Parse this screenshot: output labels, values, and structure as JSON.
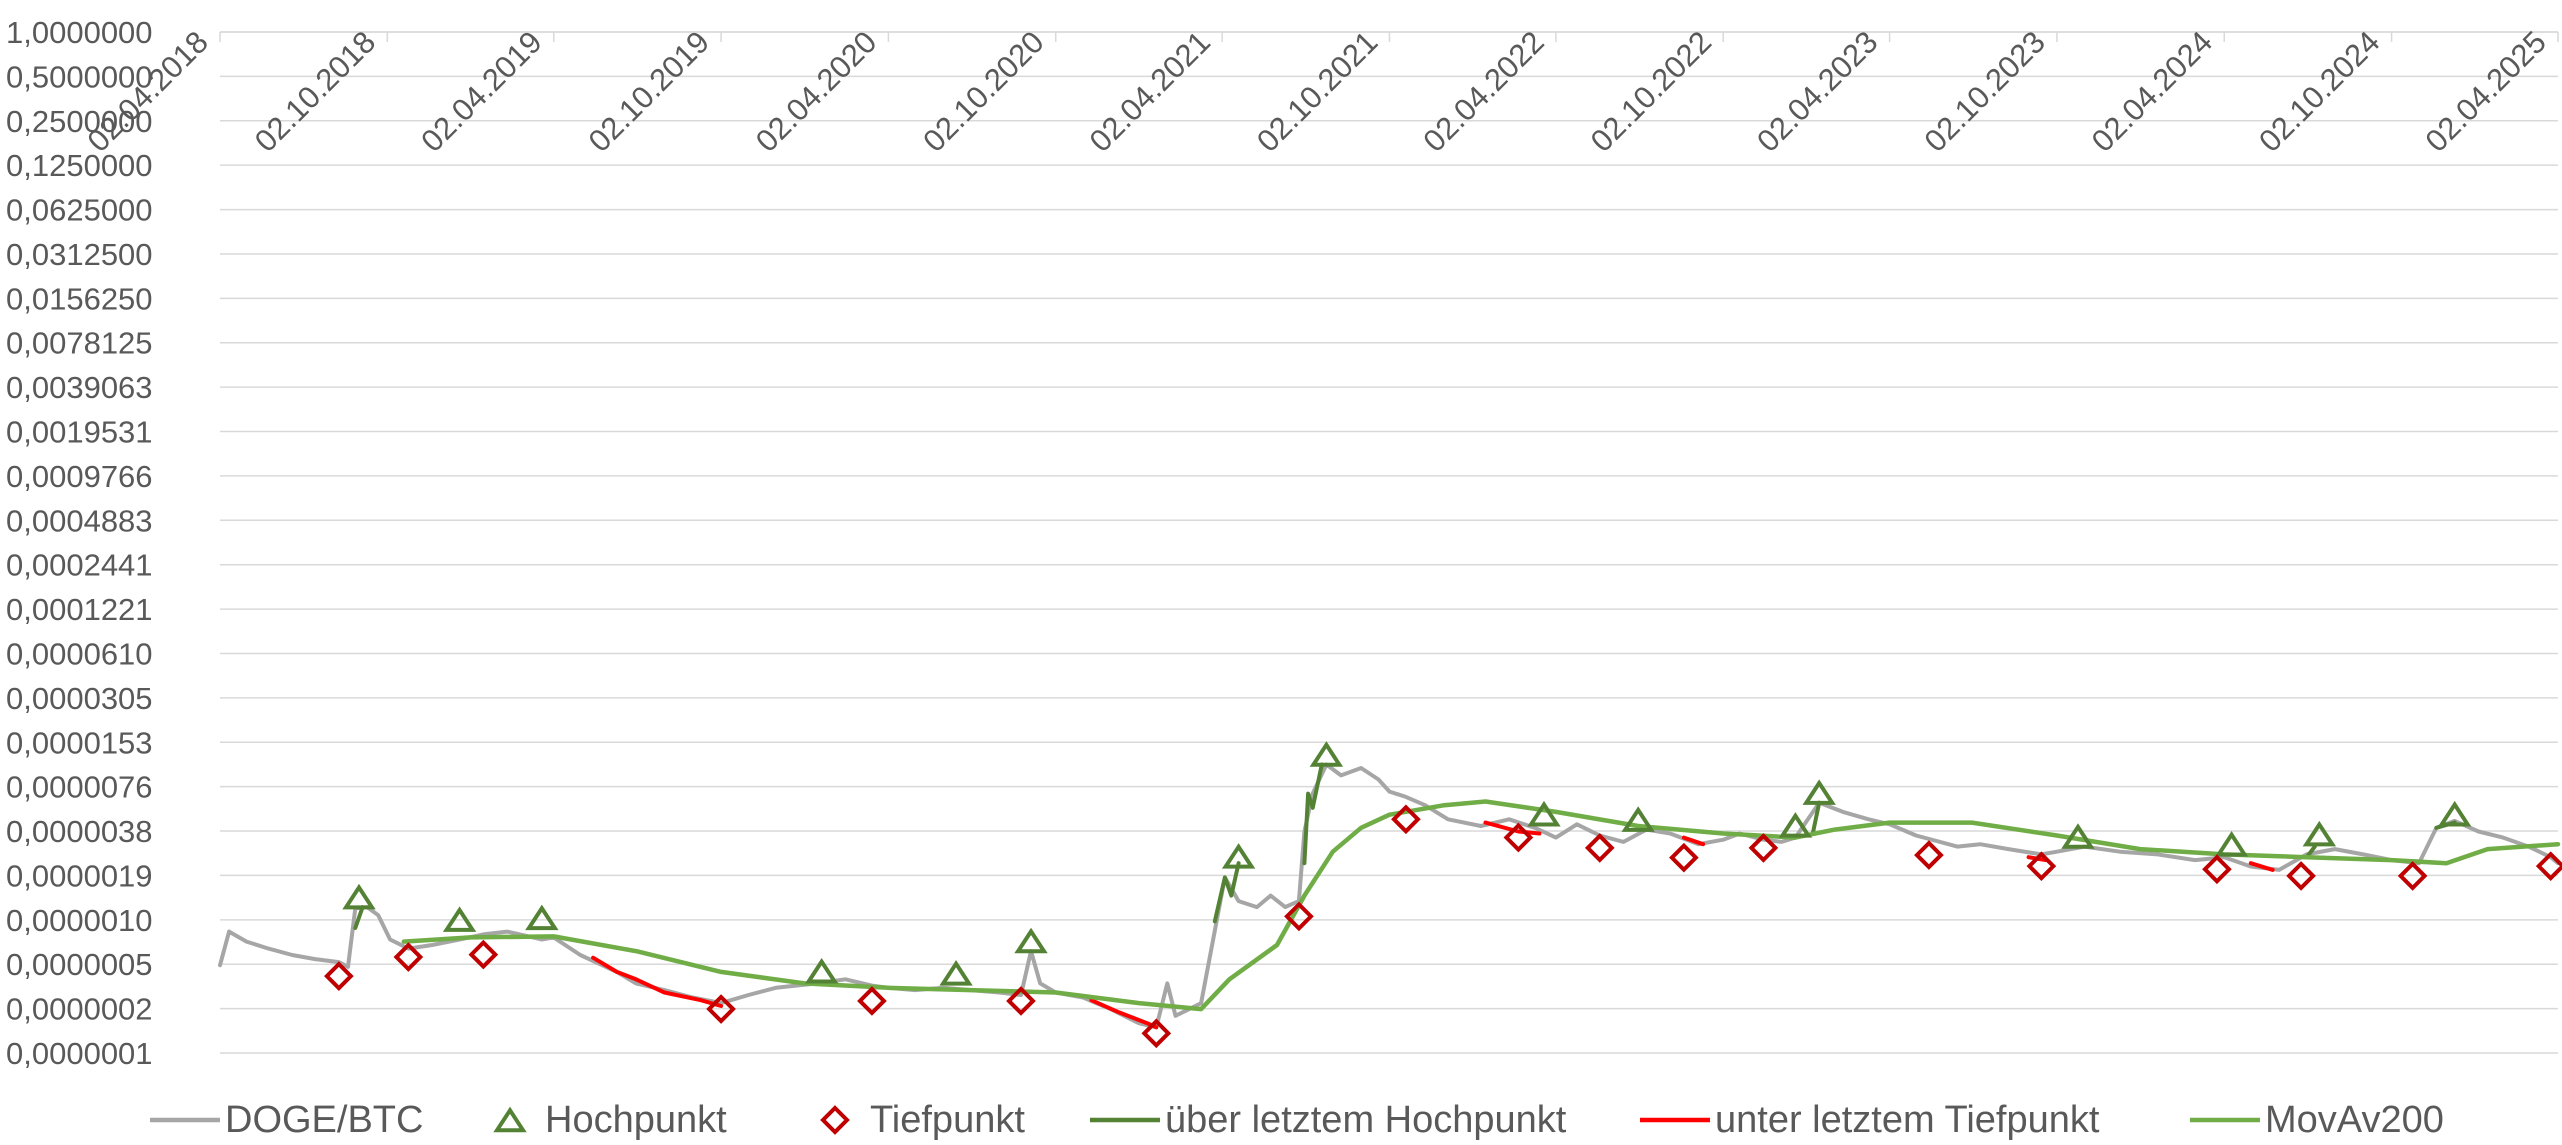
{
  "chart_data": {
    "type": "line",
    "title": "",
    "xlabel": "",
    "ylabel": "",
    "x_axis": {
      "type": "date",
      "range": [
        "2018-04-02",
        "2025-04-02"
      ],
      "ticks": [
        "02.04.2018",
        "02.10.2018",
        "02.04.2019",
        "02.10.2019",
        "02.04.2020",
        "02.10.2020",
        "02.04.2021",
        "02.10.2021",
        "02.04.2022",
        "02.10.2022",
        "02.04.2023",
        "02.10.2023",
        "02.04.2024",
        "02.10.2024",
        "02.04.2025"
      ]
    },
    "y_axis": {
      "scale": "log2",
      "range": [
        1e-07,
        1.0
      ],
      "ticks": [
        "0,0000001",
        "0,0000002",
        "0,0000005",
        "0,0000010",
        "0,0000019",
        "0,0000038",
        "0,0000076",
        "0,0000153",
        "0,0000305",
        "0,0000610",
        "0,0001221",
        "0,0002441",
        "0,0004883",
        "0,0009766",
        "0,0019531",
        "0,0039063",
        "0,0078125",
        "0,0156250",
        "0,0312500",
        "0,0625000",
        "0,1250000",
        "0,2500000",
        "0,5000000",
        "1,0000000"
      ]
    },
    "grid": true,
    "legend_position": "bottom",
    "colors": {
      "price": "#A6A6A6",
      "high_marker": "#548235",
      "low_marker": "#C00000",
      "above_high": "#548235",
      "below_low": "#FF0000",
      "movav": "#70AD47",
      "grid": "#D9D9D9"
    },
    "legend": [
      {
        "key": "price",
        "label": "DOGE/BTC",
        "kind": "line"
      },
      {
        "key": "high",
        "label": "Hochpunkt",
        "kind": "triangle"
      },
      {
        "key": "low",
        "label": "Tiefpunkt",
        "kind": "diamond"
      },
      {
        "key": "above_high",
        "label": "über letztem Hochpunkt",
        "kind": "line"
      },
      {
        "key": "below_low",
        "label": "unter letztem Tiefpunkt",
        "kind": "line"
      },
      {
        "key": "movav",
        "label": "MovAv200",
        "kind": "line"
      }
    ],
    "series": [
      {
        "name": "DOGE/BTC",
        "points": [
          [
            "2018-04-02",
            4e-07
          ],
          [
            "2018-04-12",
            6.8e-07
          ],
          [
            "2018-05-01",
            5.8e-07
          ],
          [
            "2018-05-25",
            5.2e-07
          ],
          [
            "2018-06-20",
            4.7e-07
          ],
          [
            "2018-07-15",
            4.4e-07
          ],
          [
            "2018-08-10",
            4.2e-07
          ],
          [
            "2018-08-20",
            3.9e-07
          ],
          [
            "2018-08-28",
            9.8e-07
          ],
          [
            "2018-09-10",
            1e-06
          ],
          [
            "2018-09-22",
            8.8e-07
          ],
          [
            "2018-10-05",
            6e-07
          ],
          [
            "2018-10-25",
            5.2e-07
          ],
          [
            "2018-11-20",
            5.5e-07
          ],
          [
            "2018-12-20",
            6e-07
          ],
          [
            "2019-01-15",
            6.5e-07
          ],
          [
            "2019-02-10",
            6.8e-07
          ],
          [
            "2019-03-01",
            6.4e-07
          ],
          [
            "2019-03-20",
            6e-07
          ],
          [
            "2019-04-02",
            6.2e-07
          ],
          [
            "2019-05-01",
            4.7e-07
          ],
          [
            "2019-06-10",
            3.6e-07
          ],
          [
            "2019-07-01",
            3e-07
          ],
          [
            "2019-08-01",
            2.7e-07
          ],
          [
            "2019-09-01",
            2.4e-07
          ],
          [
            "2019-10-02",
            2.2e-07
          ],
          [
            "2019-11-01",
            2.5e-07
          ],
          [
            "2019-12-01",
            2.8e-07
          ],
          [
            "2020-01-15",
            3e-07
          ],
          [
            "2020-02-15",
            3.2e-07
          ],
          [
            "2020-03-15",
            2.9e-07
          ],
          [
            "2020-04-02",
            2.8e-07
          ],
          [
            "2020-05-01",
            2.7e-07
          ],
          [
            "2020-06-01",
            2.8e-07
          ],
          [
            "2020-07-01",
            2.7e-07
          ],
          [
            "2020-08-01",
            2.6e-07
          ],
          [
            "2020-08-25",
            2.5e-07
          ],
          [
            "2020-09-05",
            5e-07
          ],
          [
            "2020-09-15",
            3e-07
          ],
          [
            "2020-10-02",
            2.6e-07
          ],
          [
            "2020-11-01",
            2.4e-07
          ],
          [
            "2020-12-01",
            2e-07
          ],
          [
            "2021-01-01",
            1.6e-07
          ],
          [
            "2021-01-20",
            1.5e-07
          ],
          [
            "2021-02-01",
            3e-07
          ],
          [
            "2021-02-10",
            1.8e-07
          ],
          [
            "2021-02-25",
            2e-07
          ],
          [
            "2021-03-10",
            2.2e-07
          ],
          [
            "2021-04-05",
            1.6e-06
          ],
          [
            "2021-04-20",
            1.1e-06
          ],
          [
            "2021-05-10",
            1e-06
          ],
          [
            "2021-05-25",
            1.2e-06
          ],
          [
            "2021-06-10",
            1e-06
          ],
          [
            "2021-06-25",
            1.1e-06
          ],
          [
            "2021-07-01",
            3.3e-06
          ],
          [
            "2021-07-10",
            6e-06
          ],
          [
            "2021-07-25",
            9.5e-06
          ],
          [
            "2021-08-10",
            8e-06
          ],
          [
            "2021-09-01",
            9e-06
          ],
          [
            "2021-09-20",
            7.5e-06
          ],
          [
            "2021-10-02",
            6.2e-06
          ],
          [
            "2021-10-20",
            5.7e-06
          ],
          [
            "2021-11-10",
            5e-06
          ],
          [
            "2021-12-05",
            4e-06
          ],
          [
            "2022-01-10",
            3.6e-06
          ],
          [
            "2022-02-10",
            4e-06
          ],
          [
            "2022-03-10",
            3.5e-06
          ],
          [
            "2022-04-02",
            3e-06
          ],
          [
            "2022-04-25",
            3.7e-06
          ],
          [
            "2022-05-20",
            3.1e-06
          ],
          [
            "2022-06-15",
            2.8e-06
          ],
          [
            "2022-07-10",
            3.4e-06
          ],
          [
            "2022-08-05",
            3.2e-06
          ],
          [
            "2022-09-05",
            2.7e-06
          ],
          [
            "2022-10-02",
            2.9e-06
          ],
          [
            "2022-10-20",
            3.2e-06
          ],
          [
            "2022-11-15",
            2.9e-06
          ],
          [
            "2022-12-05",
            2.8e-06
          ],
          [
            "2022-12-20",
            3e-06
          ],
          [
            "2023-01-15",
            5.2e-06
          ],
          [
            "2023-02-10",
            4.5e-06
          ],
          [
            "2023-03-10",
            4e-06
          ],
          [
            "2023-04-02",
            3.7e-06
          ],
          [
            "2023-05-01",
            3.1e-06
          ],
          [
            "2023-06-15",
            2.6e-06
          ],
          [
            "2023-07-10",
            2.7e-06
          ],
          [
            "2023-08-10",
            2.5e-06
          ],
          [
            "2023-09-15",
            2.3e-06
          ],
          [
            "2023-10-02",
            2.4e-06
          ],
          [
            "2023-11-01",
            2.6e-06
          ],
          [
            "2023-12-10",
            2.4e-06
          ],
          [
            "2024-01-20",
            2.3e-06
          ],
          [
            "2024-03-01",
            2.1e-06
          ],
          [
            "2024-04-02",
            2.2e-06
          ],
          [
            "2024-05-01",
            1.9e-06
          ],
          [
            "2024-06-01",
            1.8e-06
          ],
          [
            "2024-07-01",
            2.3e-06
          ],
          [
            "2024-08-01",
            2.5e-06
          ],
          [
            "2024-09-01",
            2.3e-06
          ],
          [
            "2024-10-02",
            2.1e-06
          ],
          [
            "2024-11-01",
            2e-06
          ],
          [
            "2024-11-20",
            3.5e-06
          ],
          [
            "2024-12-10",
            3.9e-06
          ],
          [
            "2025-01-05",
            3.3e-06
          ],
          [
            "2025-02-01",
            3e-06
          ],
          [
            "2025-03-01",
            2.6e-06
          ],
          [
            "2025-03-25",
            2.2e-06
          ],
          [
            "2025-04-02",
            2e-06
          ]
        ]
      },
      {
        "name": "über letztem Hochpunkt",
        "segments": [
          [
            [
              "2018-08-28",
              7.2e-07
            ],
            [
              "2018-09-05",
              1e-06
            ]
          ],
          [
            [
              "2021-03-25",
              8e-07
            ],
            [
              "2021-04-05",
              1.6e-06
            ],
            [
              "2021-04-12",
              1.2e-06
            ],
            [
              "2021-04-20",
              2e-06
            ]
          ],
          [
            [
              "2021-07-01",
              2e-06
            ],
            [
              "2021-07-05",
              6e-06
            ],
            [
              "2021-07-10",
              4.8e-06
            ],
            [
              "2021-07-20",
              9.5e-06
            ]
          ],
          [
            [
              "2023-01-08",
              3.2e-06
            ],
            [
              "2023-01-15",
              5.2e-06
            ]
          ],
          [
            [
              "2024-07-01",
              2.2e-06
            ],
            [
              "2024-07-10",
              2.6e-06
            ]
          ],
          [
            [
              "2024-11-20",
              3.5e-06
            ],
            [
              "2024-12-10",
              3.8e-06
            ]
          ]
        ]
      },
      {
        "name": "unter letztem Tiefpunkt",
        "segments": [
          [
            [
              "2019-05-15",
              4.5e-07
            ],
            [
              "2019-06-10",
              3.6e-07
            ],
            [
              "2019-07-01",
              3.2e-07
            ],
            [
              "2019-08-01",
              2.6e-07
            ],
            [
              "2019-09-10",
              2.3e-07
            ],
            [
              "2019-10-02",
              2.1e-07
            ]
          ],
          [
            [
              "2020-11-10",
              2.3e-07
            ],
            [
              "2020-12-10",
              1.9e-07
            ],
            [
              "2021-01-10",
              1.6e-07
            ],
            [
              "2021-01-20",
              1.5e-07
            ]
          ],
          [
            [
              "2022-01-15",
              3.8e-06
            ],
            [
              "2022-02-20",
              3.3e-06
            ],
            [
              "2022-03-15",
              3.2e-06
            ]
          ],
          [
            [
              "2022-08-20",
              3e-06
            ],
            [
              "2022-09-10",
              2.7e-06
            ]
          ],
          [
            [
              "2023-09-01",
              2.2e-06
            ],
            [
              "2023-09-20",
              2.1e-06
            ]
          ],
          [
            [
              "2024-05-01",
              2e-06
            ],
            [
              "2024-05-25",
              1.8e-06
            ]
          ]
        ]
      },
      {
        "name": "MovAv200",
        "points": [
          [
            "2018-10-20",
            5.8e-07
          ],
          [
            "2019-01-01",
            6.2e-07
          ],
          [
            "2019-04-02",
            6.3e-07
          ],
          [
            "2019-07-01",
            5e-07
          ],
          [
            "2019-10-02",
            3.6e-07
          ],
          [
            "2020-01-01",
            3e-07
          ],
          [
            "2020-04-02",
            2.8e-07
          ],
          [
            "2020-07-01",
            2.7e-07
          ],
          [
            "2020-10-02",
            2.6e-07
          ],
          [
            "2021-01-01",
            2.2e-07
          ],
          [
            "2021-03-10",
            2e-07
          ],
          [
            "2021-04-10",
            3.2e-07
          ],
          [
            "2021-06-01",
            5.5e-07
          ],
          [
            "2021-07-01",
            1.2e-06
          ],
          [
            "2021-08-01",
            2.4e-06
          ],
          [
            "2021-09-01",
            3.5e-06
          ],
          [
            "2021-10-02",
            4.3e-06
          ],
          [
            "2021-12-01",
            5e-06
          ],
          [
            "2022-01-15",
            5.3e-06
          ],
          [
            "2022-04-02",
            4.5e-06
          ],
          [
            "2022-07-01",
            3.6e-06
          ],
          [
            "2022-10-02",
            3.2e-06
          ],
          [
            "2022-12-20",
            3e-06
          ],
          [
            "2023-02-01",
            3.4e-06
          ],
          [
            "2023-04-02",
            3.8e-06
          ],
          [
            "2023-07-01",
            3.8e-06
          ],
          [
            "2023-10-02",
            3.1e-06
          ],
          [
            "2024-01-01",
            2.5e-06
          ],
          [
            "2024-04-02",
            2.3e-06
          ],
          [
            "2024-07-01",
            2.2e-06
          ],
          [
            "2024-10-02",
            2.1e-06
          ],
          [
            "2024-12-01",
            2e-06
          ],
          [
            "2025-01-15",
            2.5e-06
          ],
          [
            "2025-04-02",
            2.7e-06
          ]
        ]
      }
    ],
    "hochpunkte": [
      [
        "2018-09-01",
        1e-06
      ],
      [
        "2018-12-20",
        7e-07
      ],
      [
        "2019-03-20",
        7.2e-07
      ],
      [
        "2020-01-20",
        3.1e-07
      ],
      [
        "2020-06-15",
        3e-07
      ],
      [
        "2020-09-05",
        5e-07
      ],
      [
        "2021-04-20",
        1.9e-06
      ],
      [
        "2021-07-25",
        9.5e-06
      ],
      [
        "2022-03-20",
        3.7e-06
      ],
      [
        "2022-07-01",
        3.4e-06
      ],
      [
        "2022-12-20",
        3.1e-06
      ],
      [
        "2023-01-15",
        5.2e-06
      ],
      [
        "2023-10-25",
        2.6e-06
      ],
      [
        "2024-04-10",
        2.3e-06
      ],
      [
        "2024-07-15",
        2.7e-06
      ],
      [
        "2024-12-10",
        3.7e-06
      ]
    ],
    "tiefpunkte": [
      [
        "2018-08-10",
        3.7e-07
      ],
      [
        "2018-10-25",
        5e-07
      ],
      [
        "2019-01-15",
        5.2e-07
      ],
      [
        "2019-10-02",
        2.2e-07
      ],
      [
        "2020-03-15",
        2.5e-07
      ],
      [
        "2020-08-25",
        2.5e-07
      ],
      [
        "2021-01-20",
        1.5e-07
      ],
      [
        "2021-06-25",
        9.5e-07
      ],
      [
        "2021-10-20",
        4.4e-06
      ],
      [
        "2022-02-20",
        3.3e-06
      ],
      [
        "2022-05-20",
        2.8e-06
      ],
      [
        "2022-08-20",
        2.4e-06
      ],
      [
        "2022-11-15",
        2.8e-06
      ],
      [
        "2023-05-15",
        2.5e-06
      ],
      [
        "2023-09-15",
        2.1e-06
      ],
      [
        "2024-03-25",
        2e-06
      ],
      [
        "2024-06-25",
        1.8e-06
      ],
      [
        "2024-10-25",
        1.8e-06
      ],
      [
        "2025-03-25",
        2.1e-06
      ]
    ]
  }
}
